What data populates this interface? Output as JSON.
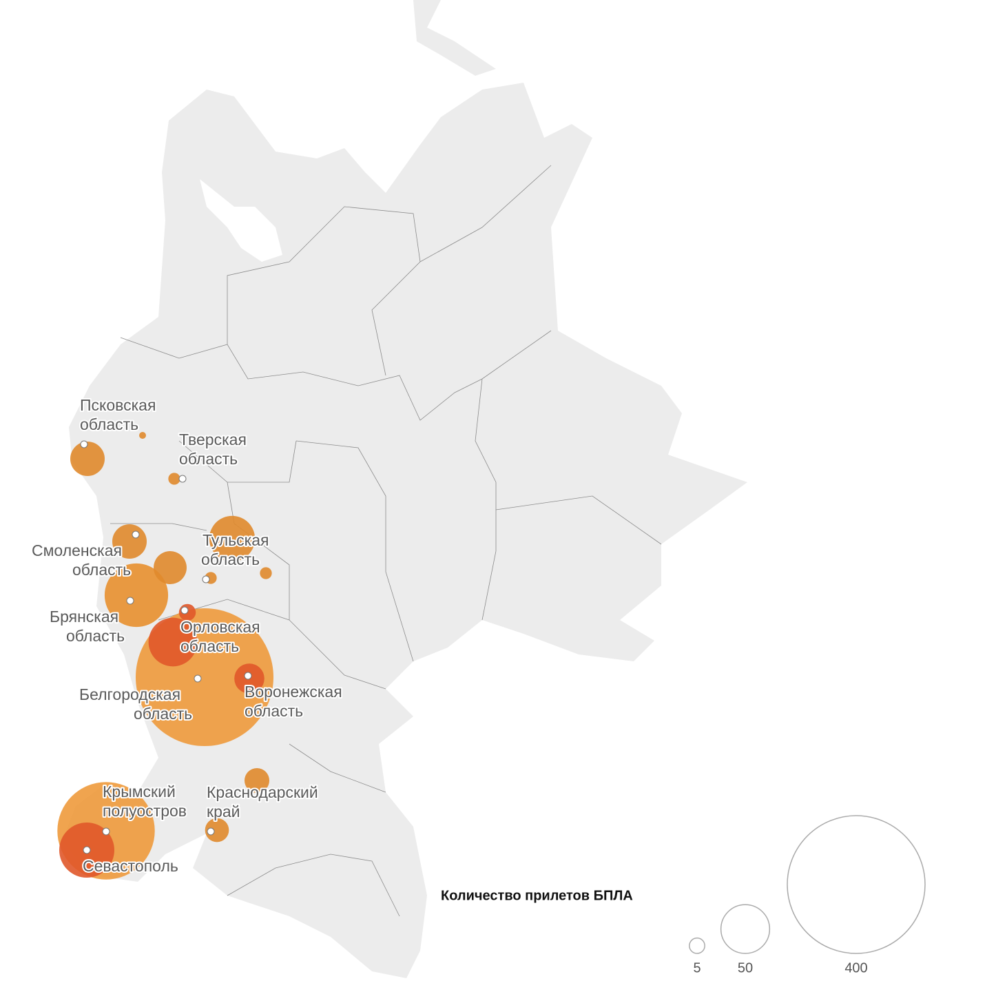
{
  "map": {
    "bubbles": [
      {
        "value": 400,
        "color": "#ee9a3c"
      },
      {
        "value": 200,
        "color": "#ee9a3c"
      },
      {
        "value": 85,
        "color": "#e8902f"
      },
      {
        "value": 64,
        "color": "#e0582a"
      },
      {
        "value": 50,
        "color": "#e0582a"
      },
      {
        "value": 44,
        "color": "#e08a2c"
      },
      {
        "value": 25,
        "color": "#e08a2c"
      },
      {
        "value": 25,
        "color": "#e08a2c"
      },
      {
        "value": 23,
        "color": "#e08a2c"
      },
      {
        "value": 19,
        "color": "#e0582a"
      },
      {
        "value": 13,
        "color": "#e08a2c"
      },
      {
        "value": 12,
        "color": "#e08a2c"
      },
      {
        "value": 6,
        "color": "#e0582a"
      },
      {
        "value": 3,
        "color": "#e08a2c"
      },
      {
        "value": 3,
        "color": "#e08a2c"
      },
      {
        "value": 3,
        "color": "#e08a2c"
      },
      {
        "value": 1,
        "color": "#e08a2c"
      }
    ],
    "labels": [
      [
        "Псковская",
        "область"
      ],
      [
        "Тверская",
        "область"
      ],
      [
        "Смоленская",
        "область"
      ],
      [
        "Тульская",
        "область"
      ],
      [
        "Брянская",
        "область"
      ],
      [
        "Орловская",
        "область"
      ],
      [
        "Белгородская",
        "область"
      ],
      [
        "Воронежская",
        "область"
      ],
      [
        "Крымский",
        "полуостров"
      ],
      [
        "Краснодарский",
        "край"
      ],
      [
        "Севастополь"
      ]
    ],
    "legend": {
      "title": "Количество прилетов БПЛА",
      "values": [
        5,
        50,
        400
      ]
    }
  }
}
